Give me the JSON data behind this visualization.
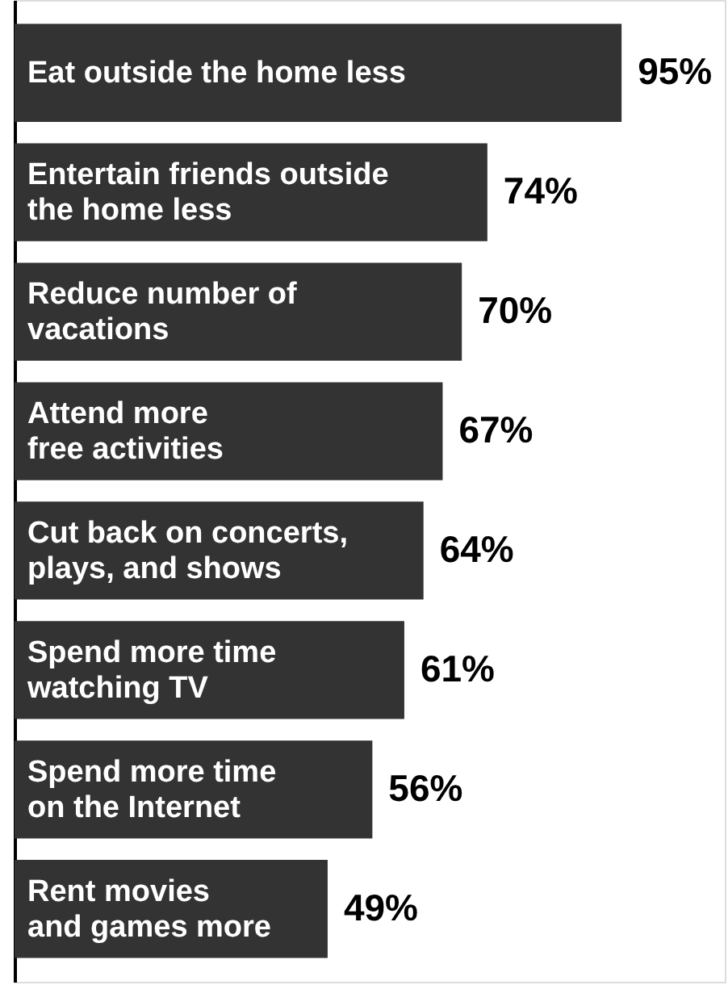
{
  "chart_data": {
    "type": "bar",
    "orientation": "horizontal",
    "categories": [
      "Eat outside the home less",
      "Entertain friends outside\nthe home less",
      "Reduce number of\nvacations",
      "Attend more\nfree activities",
      "Cut back on concerts,\nplays, and shows",
      "Spend more time\nwatching TV",
      "Spend more time\non the Internet",
      "Rent movies\nand games more"
    ],
    "values": [
      95,
      74,
      70,
      67,
      64,
      61,
      56,
      49
    ],
    "value_labels": [
      "95%",
      "74%",
      "70%",
      "67%",
      "64%",
      "61%",
      "56%",
      "49%"
    ],
    "color": "#333333",
    "grid": false,
    "tick_labels": false
  }
}
